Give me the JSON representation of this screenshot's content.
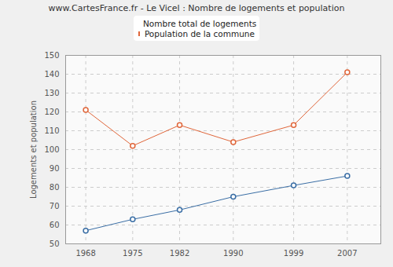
{
  "chart_data": {
    "type": "line",
    "title": "www.CartesFrance.fr - Le Vicel : Nombre de logements et population",
    "x": [
      1968,
      1975,
      1982,
      1990,
      1999,
      2007
    ],
    "series": [
      {
        "name": "Nombre total de logements",
        "color": "#3a6ea5",
        "marker": "circle",
        "values": [
          57,
          63,
          68,
          75,
          81,
          86
        ]
      },
      {
        "name": "Population de la commune",
        "color": "#e0663a",
        "marker": "circle",
        "values": [
          121,
          102,
          113,
          104,
          113,
          141
        ]
      }
    ],
    "ylabel": "Logements et population",
    "xlim": [
      1965,
      2012
    ],
    "xticks": [
      1968,
      1975,
      1982,
      1990,
      1999,
      2007
    ],
    "ylim": [
      50,
      150
    ],
    "yticks": [
      50,
      60,
      70,
      80,
      90,
      100,
      110,
      120,
      130,
      140,
      150
    ],
    "grid": true,
    "legend": "top"
  }
}
